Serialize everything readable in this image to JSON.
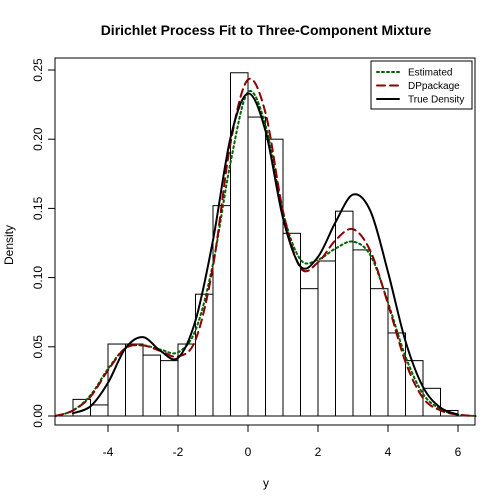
{
  "chart_data": {
    "type": "histogram",
    "title": "Dirichlet Process Fit to Three-Component Mixture",
    "xlabel": "y",
    "ylabel": "Density",
    "xlim": [
      -5.2,
      6.4
    ],
    "ylim": [
      0,
      0.25
    ],
    "xticks": [
      -4,
      -2,
      0,
      2,
      4,
      6
    ],
    "yticks": [
      0.0,
      0.05,
      0.1,
      0.15,
      0.2,
      0.25
    ],
    "ytick_labels": [
      "0.00",
      "0.05",
      "0.10",
      "0.15",
      "0.20",
      "0.25"
    ],
    "grid": false,
    "legend_position": "top-right",
    "bin_width": 0.5,
    "histogram": [
      {
        "x0": -5.0,
        "x1": -4.5,
        "density": 0.012
      },
      {
        "x0": -4.5,
        "x1": -4.0,
        "density": 0.008
      },
      {
        "x0": -4.0,
        "x1": -3.5,
        "density": 0.052
      },
      {
        "x0": -3.5,
        "x1": -3.0,
        "density": 0.052
      },
      {
        "x0": -3.0,
        "x1": -2.5,
        "density": 0.044
      },
      {
        "x0": -2.5,
        "x1": -2.0,
        "density": 0.04
      },
      {
        "x0": -2.0,
        "x1": -1.5,
        "density": 0.052
      },
      {
        "x0": -1.5,
        "x1": -1.0,
        "density": 0.088
      },
      {
        "x0": -1.0,
        "x1": -0.5,
        "density": 0.152
      },
      {
        "x0": -0.5,
        "x1": 0.0,
        "density": 0.248
      },
      {
        "x0": 0.0,
        "x1": 0.5,
        "density": 0.216
      },
      {
        "x0": 0.5,
        "x1": 1.0,
        "density": 0.2
      },
      {
        "x0": 1.0,
        "x1": 1.5,
        "density": 0.132
      },
      {
        "x0": 1.5,
        "x1": 2.0,
        "density": 0.092
      },
      {
        "x0": 2.0,
        "x1": 2.5,
        "density": 0.112
      },
      {
        "x0": 2.5,
        "x1": 3.0,
        "density": 0.148
      },
      {
        "x0": 3.0,
        "x1": 3.5,
        "density": 0.12
      },
      {
        "x0": 3.5,
        "x1": 4.0,
        "density": 0.092
      },
      {
        "x0": 4.0,
        "x1": 4.5,
        "density": 0.06
      },
      {
        "x0": 4.5,
        "x1": 5.0,
        "density": 0.04
      },
      {
        "x0": 5.0,
        "x1": 5.5,
        "density": 0.02
      },
      {
        "x0": 5.5,
        "x1": 6.0,
        "density": 0.004
      }
    ],
    "series": [
      {
        "name": "Estimated",
        "color": "#006400",
        "dash": "dotted",
        "x": [
          -5.5,
          -5.0,
          -4.5,
          -4.0,
          -3.5,
          -3.0,
          -2.5,
          -2.0,
          -1.5,
          -1.0,
          -0.5,
          0.0,
          0.5,
          1.0,
          1.5,
          2.0,
          2.5,
          3.0,
          3.5,
          4.0,
          4.5,
          5.0,
          5.5,
          6.0,
          6.5
        ],
        "y": [
          0.0,
          0.004,
          0.015,
          0.034,
          0.049,
          0.051,
          0.048,
          0.046,
          0.062,
          0.11,
          0.183,
          0.234,
          0.21,
          0.147,
          0.113,
          0.113,
          0.121,
          0.126,
          0.116,
          0.082,
          0.043,
          0.016,
          0.005,
          0.001,
          0.0
        ]
      },
      {
        "name": "DPpackage",
        "color": "#8b0000",
        "dash": "dashed",
        "x": [
          -5.5,
          -5.0,
          -4.5,
          -4.0,
          -3.5,
          -3.0,
          -2.5,
          -2.0,
          -1.5,
          -1.0,
          -0.5,
          0.0,
          0.5,
          1.0,
          1.5,
          2.0,
          2.5,
          3.0,
          3.5,
          4.0,
          4.5,
          5.0,
          5.5,
          6.0,
          6.5
        ],
        "y": [
          0.0,
          0.004,
          0.014,
          0.033,
          0.049,
          0.051,
          0.047,
          0.043,
          0.055,
          0.108,
          0.197,
          0.243,
          0.219,
          0.148,
          0.107,
          0.111,
          0.127,
          0.135,
          0.119,
          0.081,
          0.039,
          0.013,
          0.004,
          0.001,
          0.0
        ]
      },
      {
        "name": "True Density",
        "color": "#000000",
        "dash": "solid",
        "x": [
          -5.0,
          -4.5,
          -4.0,
          -3.5,
          -3.0,
          -2.5,
          -2.0,
          -1.5,
          -1.0,
          -0.5,
          0.0,
          0.5,
          1.0,
          1.5,
          2.0,
          2.5,
          3.0,
          3.5,
          4.0,
          4.5,
          5.0,
          5.5,
          6.0
        ],
        "y": [
          0.002,
          0.007,
          0.024,
          0.049,
          0.057,
          0.047,
          0.042,
          0.069,
          0.127,
          0.201,
          0.233,
          0.206,
          0.143,
          0.108,
          0.115,
          0.14,
          0.16,
          0.148,
          0.104,
          0.054,
          0.021,
          0.006,
          0.001
        ]
      }
    ]
  }
}
